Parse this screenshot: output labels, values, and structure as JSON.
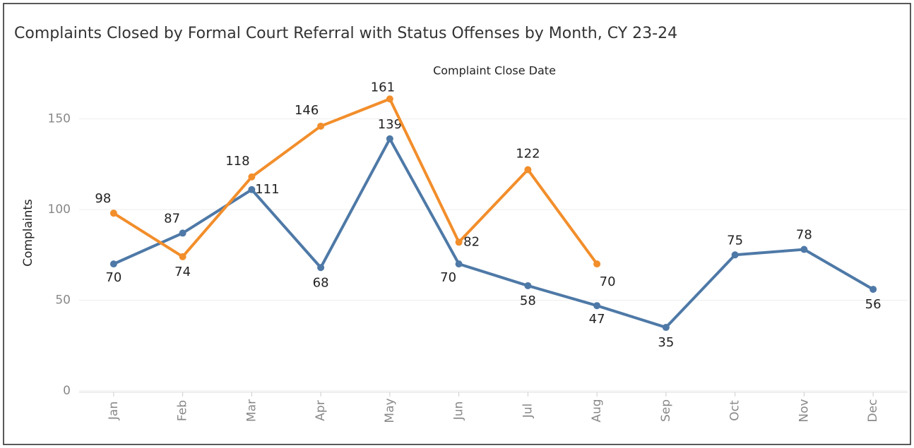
{
  "chart_data": {
    "type": "line",
    "title": "Complaints Closed by Formal Court Referral with Status Offenses by Month, CY 23-24",
    "x_label": "Complaint Close Date",
    "y_label": "Complaints",
    "categories": [
      "Jan",
      "Feb",
      "Mar",
      "Apr",
      "May",
      "Jun",
      "Jul",
      "Aug",
      "Sep",
      "Oct",
      "Nov",
      "Dec"
    ],
    "series": [
      {
        "color": "#4e79a7",
        "values": [
          70,
          87,
          111,
          68,
          139,
          70,
          58,
          47,
          35,
          75,
          78,
          56
        ]
      },
      {
        "color": "#f28e2b",
        "values": [
          98,
          74,
          118,
          146,
          161,
          82,
          122,
          70,
          null,
          null,
          null,
          null
        ]
      }
    ],
    "ylim": [
      0,
      172
    ],
    "yticks": [
      0,
      50,
      100,
      150
    ],
    "grid": true
  }
}
